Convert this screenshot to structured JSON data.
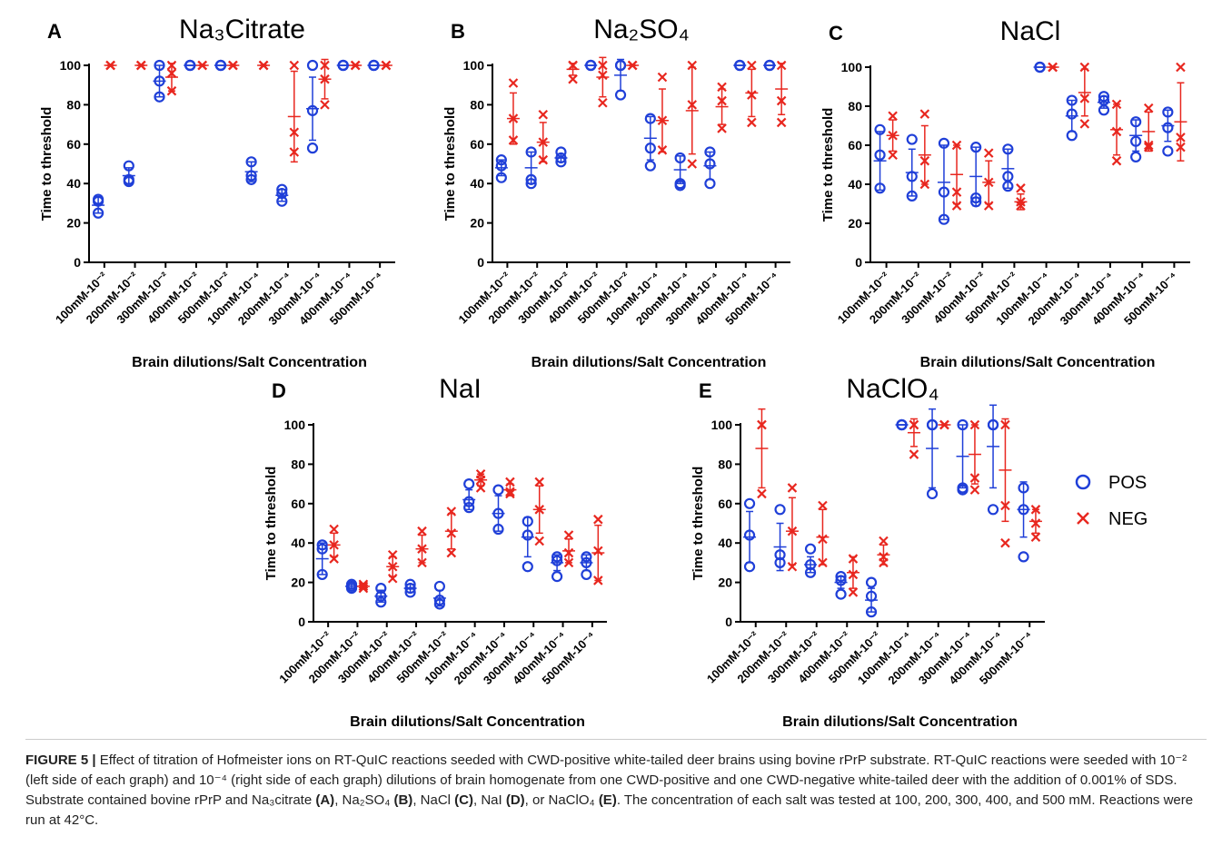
{
  "chart_data": [
    {
      "type": "scatter",
      "panel": "A",
      "title": "Na₃Citrate",
      "ylabel": "Time to threshold",
      "xlabel": "Brain dilutions/Salt Concentration",
      "categories": [
        "100mM-10⁻²",
        "200mM-10⁻²",
        "300mM-10⁻²",
        "400mM-10⁻²",
        "500mM-10⁻²",
        "100mM-10⁻⁴",
        "200mM-10⁻⁴",
        "300mM-10⁻⁴",
        "400mM-10⁻⁴",
        "500mM-10⁻⁴"
      ],
      "ylim": [
        0,
        100
      ],
      "yticks": [
        0,
        20,
        40,
        60,
        80,
        100
      ],
      "series": [
        {
          "name": "POS",
          "color": "#1f3fd8",
          "marker": "circle",
          "values": [
            [
              32,
              31,
              25
            ],
            [
              49,
              42,
              41
            ],
            [
              100,
              92,
              84
            ],
            [
              100,
              100,
              100
            ],
            [
              100,
              100,
              100
            ],
            [
              51,
              44,
              42
            ],
            [
              37,
              35,
              31
            ],
            [
              100,
              77,
              58
            ],
            [
              100,
              100,
              100
            ],
            [
              100,
              100,
              100
            ]
          ],
          "mean": [
            29,
            44,
            92,
            100,
            100,
            46,
            34,
            78,
            100,
            100
          ],
          "sd": [
            4,
            4,
            8,
            0,
            0,
            5,
            3,
            16,
            0,
            0
          ]
        },
        {
          "name": "NEG",
          "color": "#e8271f",
          "marker": "x",
          "values": [
            [
              100,
              100,
              100
            ],
            [
              100,
              100,
              100
            ],
            [
              100,
              96,
              87
            ],
            [
              100,
              100,
              100
            ],
            [
              100,
              100,
              100
            ],
            [
              100,
              100,
              100
            ],
            [
              100,
              66,
              56
            ],
            [
              100,
              93,
              80
            ],
            [
              100,
              100,
              100
            ],
            [
              100,
              100,
              100
            ]
          ],
          "mean": [
            100,
            100,
            94,
            100,
            100,
            100,
            74,
            93,
            100,
            100
          ],
          "sd": [
            0,
            0,
            7,
            0,
            0,
            0,
            23,
            10,
            0,
            0
          ]
        }
      ]
    },
    {
      "type": "scatter",
      "panel": "B",
      "title": "Na₂SO₄",
      "ylabel": "Time to threshold",
      "xlabel": "Brain dilutions/Salt Concentration",
      "categories": [
        "100mM-10⁻²",
        "200mM-10⁻²",
        "300mM-10⁻²",
        "400mM-10⁻²",
        "500mM-10⁻²",
        "100mM-10⁻⁴",
        "200mM-10⁻⁴",
        "300mM-10⁻⁴",
        "400mM-10⁻⁴",
        "500mM-10⁻⁴"
      ],
      "ylim": [
        0,
        100
      ],
      "yticks": [
        0,
        20,
        40,
        60,
        80,
        100
      ],
      "series": [
        {
          "name": "POS",
          "color": "#1f3fd8",
          "marker": "circle",
          "values": [
            [
              52,
              49,
              43
            ],
            [
              56,
              42,
              40
            ],
            [
              56,
              53,
              51
            ],
            [
              100,
              100,
              100
            ],
            [
              100,
              100,
              85
            ],
            [
              73,
              58,
              49
            ],
            [
              53,
              40,
              39
            ],
            [
              56,
              50,
              40
            ],
            [
              100,
              100,
              100
            ],
            [
              100,
              100,
              100
            ]
          ],
          "mean": [
            48,
            48,
            53,
            100,
            95,
            63,
            47,
            49,
            100,
            100
          ],
          "sd": [
            4,
            8,
            2,
            0,
            8,
            11,
            7,
            7,
            0,
            0
          ]
        },
        {
          "name": "NEG",
          "color": "#e8271f",
          "marker": "x",
          "values": [
            [
              91,
              73,
              62
            ],
            [
              75,
              61,
              52
            ],
            [
              100,
              100,
              93
            ],
            [
              100,
              95,
              81
            ],
            [
              100,
              100,
              100
            ],
            [
              94,
              72,
              57
            ],
            [
              100,
              80,
              50
            ],
            [
              89,
              82,
              68
            ],
            [
              100,
              85,
              71
            ],
            [
              100,
              82,
              71
            ]
          ],
          "mean": [
            73,
            61,
            98,
            94,
            100,
            72,
            77,
            79,
            86,
            88
          ],
          "sd": [
            13,
            10,
            3,
            10,
            0,
            16,
            22,
            9,
            12,
            13
          ]
        }
      ]
    },
    {
      "type": "scatter",
      "panel": "C",
      "title": "NaCl",
      "ylabel": "Time to threshold",
      "xlabel": "Brain dilutions/Salt Concentration",
      "categories": [
        "100mM-10⁻²",
        "200mM-10⁻²",
        "300mM-10⁻²",
        "400mM-10⁻²",
        "500mM-10⁻²",
        "100mM-10⁻⁴",
        "200mM-10⁻⁴",
        "300mM-10⁻⁴",
        "400mM-10⁻⁴",
        "500mM-10⁻⁴"
      ],
      "ylim": [
        0,
        100
      ],
      "yticks": [
        0,
        20,
        40,
        60,
        80,
        100
      ],
      "series": [
        {
          "name": "POS",
          "color": "#1f3fd8",
          "marker": "circle",
          "values": [
            [
              68,
              55,
              38
            ],
            [
              63,
              44,
              34
            ],
            [
              61,
              36,
              22
            ],
            [
              59,
              33,
              31
            ],
            [
              58,
              44,
              39
            ],
            [
              100,
              100,
              100
            ],
            [
              83,
              76,
              65
            ],
            [
              85,
              83,
              78
            ],
            [
              72,
              62,
              54
            ],
            [
              77,
              69,
              57
            ]
          ],
          "mean": [
            52,
            46,
            41,
            44,
            48,
            100,
            75,
            82,
            65,
            70
          ],
          "sd": [
            15,
            12,
            19,
            15,
            10,
            0,
            8,
            3,
            8,
            8
          ]
        },
        {
          "name": "NEG",
          "color": "#e8271f",
          "marker": "x",
          "values": [
            [
              75,
              65,
              55
            ],
            [
              76,
              52,
              40
            ],
            [
              60,
              36,
              29
            ],
            [
              56,
              41,
              29
            ],
            [
              38,
              31,
              29
            ],
            [
              100,
              100,
              100
            ],
            [
              100,
              84,
              71
            ],
            [
              81,
              67,
              52
            ],
            [
              79,
              60,
              59
            ],
            [
              100,
              64,
              59
            ]
          ],
          "mean": [
            65,
            55,
            45,
            41,
            31,
            100,
            87,
            68,
            67,
            72
          ],
          "sd": [
            8,
            15,
            15,
            11,
            4,
            0,
            12,
            13,
            10,
            20
          ]
        }
      ]
    },
    {
      "type": "scatter",
      "panel": "D",
      "title": "NaI",
      "ylabel": "Time to threshold",
      "xlabel": "Brain dilutions/Salt Concentration",
      "categories": [
        "100mM-10⁻²",
        "200mM-10⁻²",
        "300mM-10⁻²",
        "400mM-10⁻²",
        "500mM-10⁻²",
        "100mM-10⁻⁴",
        "200mM-10⁻⁴",
        "300mM-10⁻⁴",
        "400mM-10⁻⁴",
        "500mM-10⁻⁴"
      ],
      "ylim": [
        0,
        100
      ],
      "yticks": [
        0,
        20,
        40,
        60,
        80,
        100
      ],
      "series": [
        {
          "name": "POS",
          "color": "#1f3fd8",
          "marker": "circle",
          "values": [
            [
              39,
              37,
              24
            ],
            [
              19,
              18,
              17
            ],
            [
              17,
              13,
              10
            ],
            [
              19,
              17,
              15
            ],
            [
              18,
              11,
              9
            ],
            [
              70,
              61,
              58
            ],
            [
              67,
              55,
              47
            ],
            [
              51,
              44,
              28
            ],
            [
              33,
              31,
              23
            ],
            [
              33,
              30,
              24
            ]
          ],
          "mean": [
            32,
            18,
            13,
            17,
            12,
            62,
            55,
            43,
            30,
            30
          ],
          "sd": [
            8,
            1,
            3,
            2,
            4,
            5,
            9,
            10,
            4,
            4
          ]
        },
        {
          "name": "NEG",
          "color": "#e8271f",
          "marker": "x",
          "values": [
            [
              47,
              39,
              32
            ],
            [
              19,
              18,
              17
            ],
            [
              34,
              28,
              22
            ],
            [
              46,
              37,
              30
            ],
            [
              56,
              45,
              35
            ],
            [
              75,
              72,
              68
            ],
            [
              71,
              66,
              65
            ],
            [
              71,
              57,
              41
            ],
            [
              44,
              35,
              30
            ],
            [
              52,
              36,
              21
            ]
          ],
          "mean": [
            39,
            18,
            28,
            37,
            46,
            72,
            67,
            57,
            36,
            35
          ],
          "sd": [
            6,
            1,
            5,
            7,
            9,
            3,
            3,
            12,
            6,
            14
          ]
        }
      ]
    },
    {
      "type": "scatter",
      "panel": "E",
      "title": "NaClO₄",
      "ylabel": "Time to threshold",
      "xlabel": "Brain dilutions/Salt Concentration",
      "categories": [
        "100mM-10⁻²",
        "200mM-10⁻²",
        "300mM-10⁻²",
        "400mM-10⁻²",
        "500mM-10⁻²",
        "100mM-10⁻⁴",
        "200mM-10⁻⁴",
        "300mM-10⁻⁴",
        "400mM-10⁻⁴",
        "500mM-10⁻⁴"
      ],
      "ylim": [
        0,
        100
      ],
      "yticks": [
        0,
        20,
        40,
        60,
        80,
        100
      ],
      "series": [
        {
          "name": "POS",
          "color": "#1f3fd8",
          "marker": "circle",
          "values": [
            [
              60,
              44,
              28
            ],
            [
              57,
              34,
              30
            ],
            [
              37,
              29,
              25
            ],
            [
              23,
              21,
              14
            ],
            [
              20,
              13,
              5
            ],
            [
              100,
              100,
              100
            ],
            [
              100,
              100,
              65
            ],
            [
              100,
              68,
              67
            ],
            [
              100,
              100,
              57
            ],
            [
              68,
              57,
              33
            ]
          ],
          "mean": [
            43,
            38,
            29,
            20,
            11,
            100,
            88,
            84,
            89,
            57
          ],
          "sd": [
            13,
            12,
            4,
            3,
            6,
            0,
            20,
            16,
            21,
            14
          ]
        },
        {
          "name": "NEG",
          "color": "#e8271f",
          "marker": "x",
          "values": [
            [
              100,
              100,
              65
            ],
            [
              68,
              46,
              28
            ],
            [
              59,
              42,
              30
            ],
            [
              32,
              24,
              15
            ],
            [
              41,
              33,
              30
            ],
            [
              100,
              100,
              85
            ],
            [
              100,
              100,
              100
            ],
            [
              100,
              73,
              67
            ],
            [
              100,
              59,
              40
            ],
            [
              57,
              50,
              43
            ]
          ],
          "mean": [
            88,
            46,
            43,
            25,
            34,
            96,
            100,
            85,
            77,
            51
          ],
          "sd": [
            20,
            17,
            14,
            8,
            5,
            7,
            0,
            15,
            26,
            6
          ]
        }
      ]
    }
  ],
  "caption": [
    {
      "text": "FIGURE 5 | ",
      "bold": true
    },
    {
      "text": "Effect of titration of Hofmeister ions on RT-QuIC reactions seeded with CWD-positive white-tailed deer brains using bovine rPrP substrate. RT-QuIC reactions were seeded with 10⁻² (left side of each graph) and 10⁻⁴ (right side of each graph) dilutions of brain homogenate from one CWD-positive and one CWD-negative white-tailed deer with the addition of 0.001% of SDS. Substrate contained bovine rPrP and Na₃citrate "
    },
    {
      "text": "(A)",
      "bold": true
    },
    {
      "text": ", Na₂SO₄ "
    },
    {
      "text": "(B)",
      "bold": true
    },
    {
      "text": ", NaCl "
    },
    {
      "text": "(C)",
      "bold": true
    },
    {
      "text": ", NaI "
    },
    {
      "text": "(D)",
      "bold": true
    },
    {
      "text": ", or NaClO₄ "
    },
    {
      "text": "(E)",
      "bold": true
    },
    {
      "text": ". The concentration of each salt was tested at 100, 200, 300, 400, and 500 mM. Reactions were run at 42°C."
    }
  ]
}
